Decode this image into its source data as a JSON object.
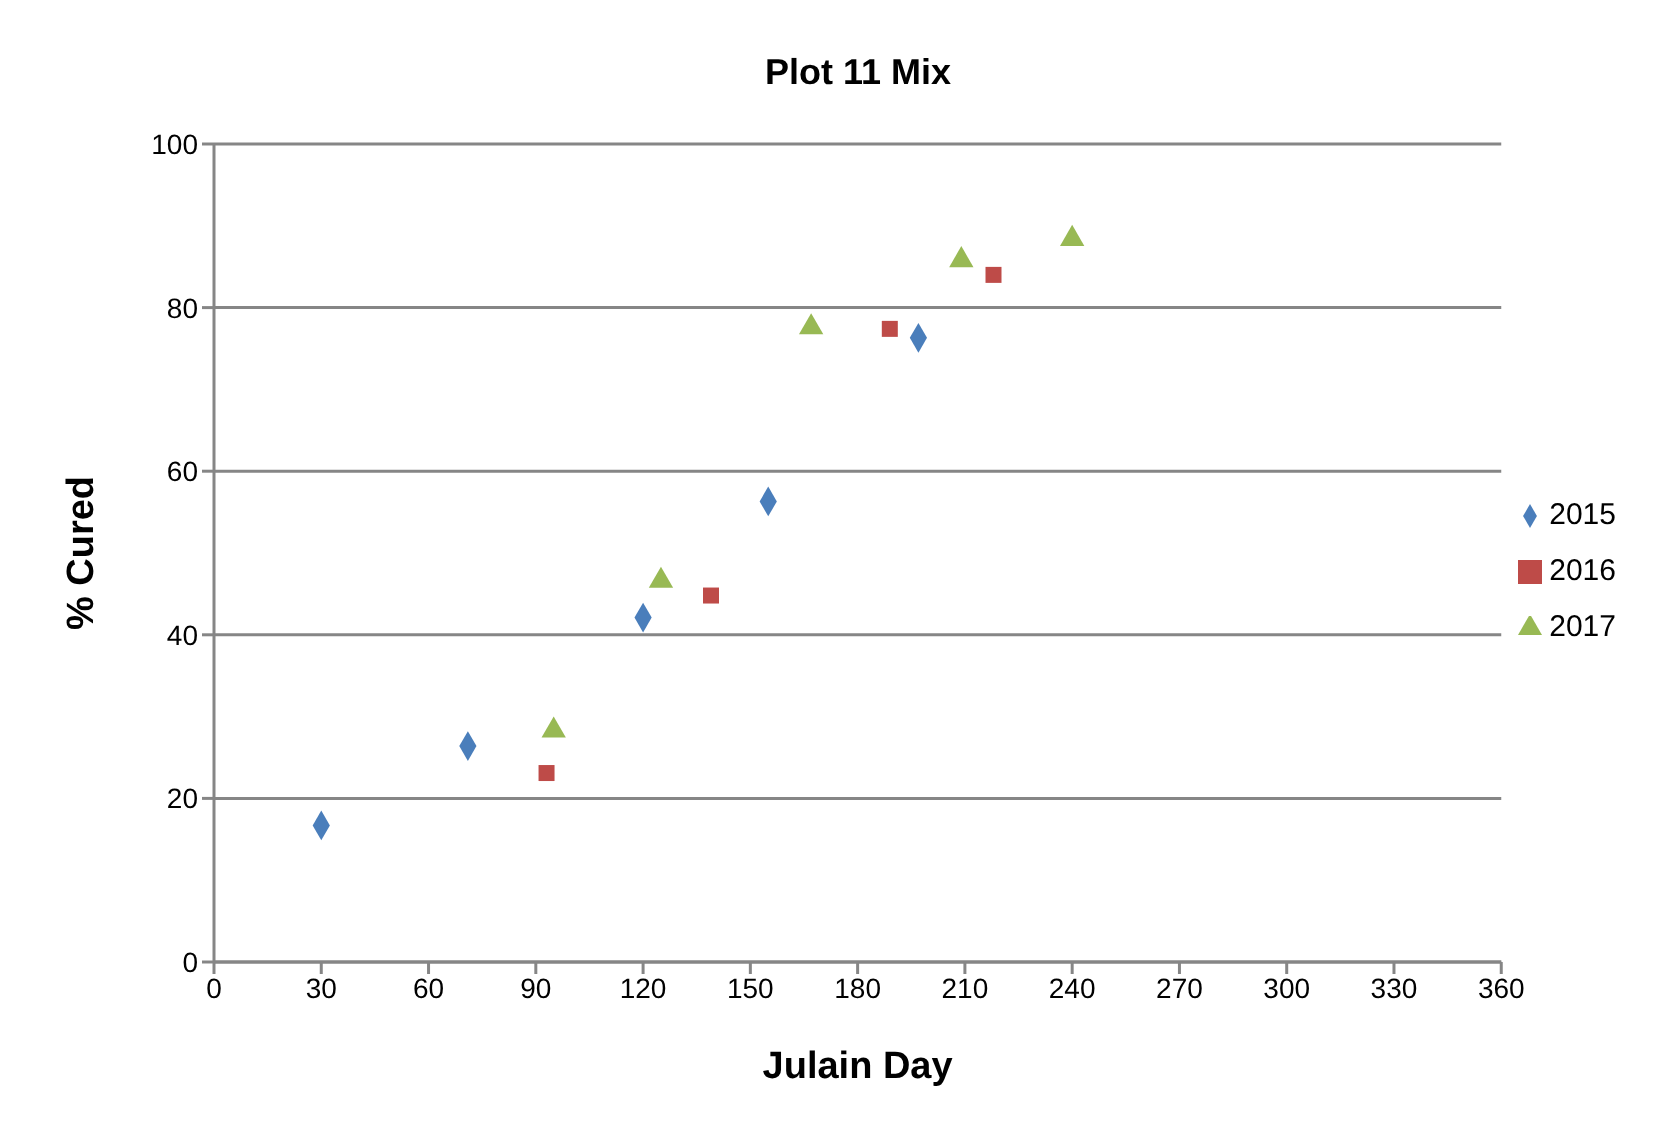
{
  "chart_data": {
    "type": "scatter",
    "title": "Plot 11 Mix",
    "xlabel": "Julain Day",
    "ylabel": "% Cured",
    "xlim": [
      0,
      360
    ],
    "xticks": [
      0,
      30,
      60,
      90,
      120,
      150,
      180,
      210,
      240,
      270,
      300,
      330,
      360
    ],
    "ylim": [
      0,
      100
    ],
    "yticks": [
      0,
      20,
      40,
      60,
      80,
      100
    ],
    "grid": "y",
    "legend": "right",
    "series": [
      {
        "name": "2015",
        "color": "#4a7ebb",
        "marker": "diamond",
        "x": [
          30,
          71,
          120,
          155,
          197
        ],
        "values": [
          16.7,
          26.4,
          42.1,
          56.3,
          76.3
        ]
      },
      {
        "name": "2016",
        "color": "#be4b48",
        "marker": "square",
        "x": [
          93,
          139,
          189,
          218
        ],
        "values": [
          23.1,
          44.8,
          77.4,
          84.0
        ]
      },
      {
        "name": "2017",
        "color": "#98b954",
        "marker": "triangle",
        "x": [
          95,
          125,
          167,
          209,
          240
        ],
        "values": [
          28.3,
          46.6,
          77.6,
          85.8,
          88.4
        ]
      }
    ]
  }
}
